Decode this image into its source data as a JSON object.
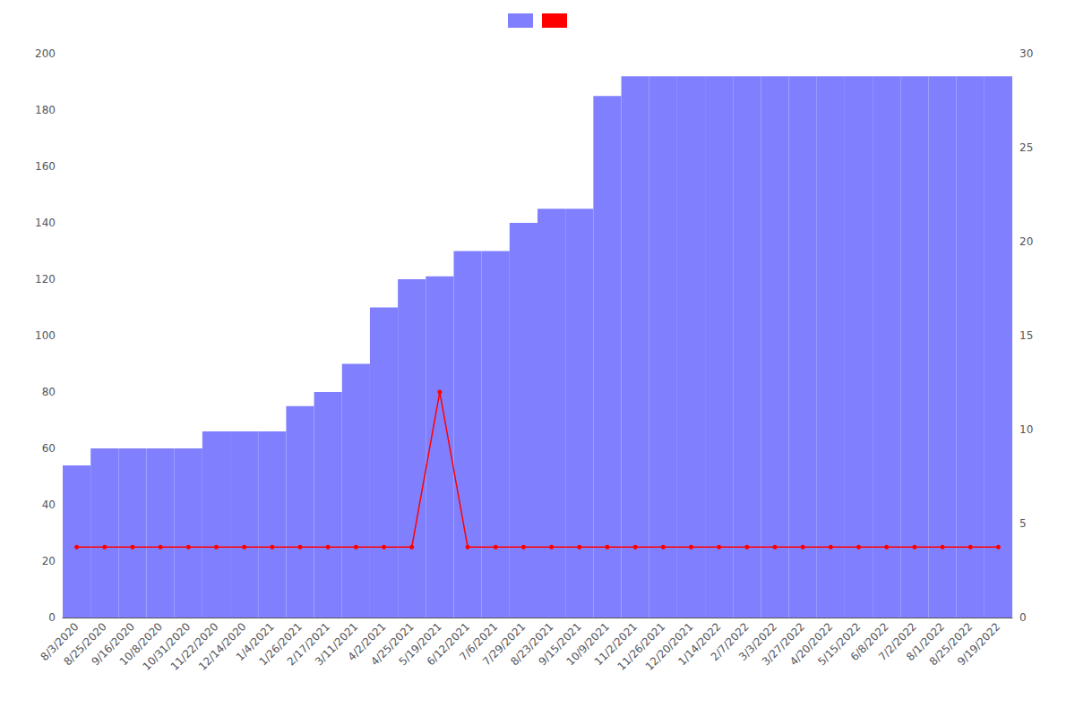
{
  "chart_data": {
    "type": "bar",
    "categories": [
      "8/3/2020",
      "8/25/2020",
      "9/16/2020",
      "10/8/2020",
      "10/31/2020",
      "11/22/2020",
      "12/14/2020",
      "1/4/2021",
      "1/26/2021",
      "2/17/2021",
      "3/11/2021",
      "4/2/2021",
      "4/25/2021",
      "5/19/2021",
      "6/12/2021",
      "7/6/2021",
      "7/29/2021",
      "8/23/2021",
      "9/15/2021",
      "10/9/2021",
      "11/2/2021",
      "11/26/2021",
      "12/20/2021",
      "1/14/2022",
      "2/7/2022",
      "3/3/2022",
      "3/27/2022",
      "4/20/2022",
      "5/15/2022",
      "6/8/2022",
      "7/2/2022",
      "8/1/2022",
      "8/25/2022",
      "9/19/2022"
    ],
    "series": [
      {
        "type": "bar",
        "color": "#8080ff",
        "values": [
          54,
          60,
          60,
          60,
          60,
          66,
          66,
          66,
          75,
          80,
          90,
          110,
          120,
          121,
          130,
          130,
          140,
          145,
          145,
          185,
          192,
          192,
          192,
          192,
          192,
          192,
          192,
          192,
          192,
          192,
          192,
          192,
          192,
          192
        ]
      },
      {
        "type": "line",
        "color": "#ff0000",
        "marker": "circle",
        "line_style": "solid",
        "values": [
          25,
          25,
          25,
          25,
          25,
          25,
          25,
          25,
          25,
          25,
          25,
          25,
          25,
          80,
          25,
          25,
          25,
          25,
          25,
          25,
          25,
          25,
          25,
          25,
          25,
          25,
          25,
          25,
          25,
          25,
          25,
          25,
          25,
          25
        ]
      }
    ],
    "ylim": [
      0,
      200
    ],
    "yticks": [
      0,
      20,
      40,
      60,
      80,
      100,
      120,
      140,
      160,
      180,
      200
    ],
    "y2lim": [
      0,
      30
    ],
    "y2ticks": [
      0,
      5,
      10,
      15,
      20,
      25,
      30
    ],
    "grid": false,
    "legend": "top"
  }
}
